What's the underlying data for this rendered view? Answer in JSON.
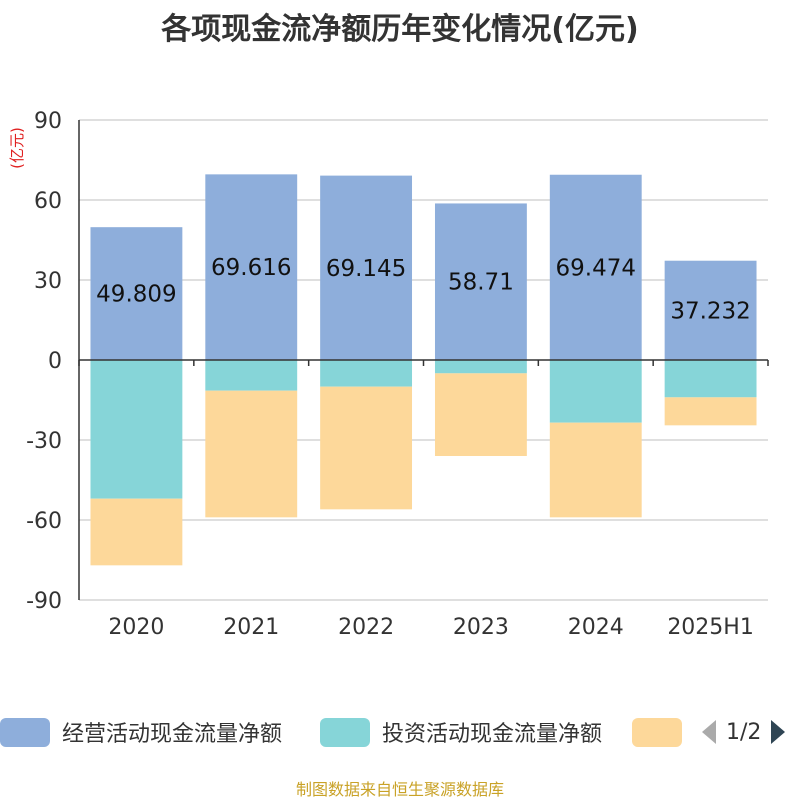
{
  "chart_data": {
    "type": "bar",
    "stacked": true,
    "title": "各项现金流净额历年变化情况(亿元)",
    "ylabel": "(亿元)",
    "categories": [
      "2020",
      "2021",
      "2022",
      "2023",
      "2024",
      "2025H1"
    ],
    "ylim": [
      -90,
      90
    ],
    "yticks": [
      "90",
      "60",
      "30",
      "0",
      "-30",
      "-60",
      "-90"
    ],
    "grid": true,
    "legend_position": "bottom",
    "series": [
      {
        "name": "经营活动现金流量净额",
        "color": "#8eaedb",
        "values": [
          49.809,
          69.616,
          69.145,
          58.71,
          69.474,
          37.232
        ],
        "labels": [
          "49.809",
          "69.616",
          "69.145",
          "58.71",
          "69.474",
          "37.232"
        ]
      },
      {
        "name": "投资活动现金流量净额",
        "color": "#86d5d8",
        "values": [
          -52.0,
          -11.5,
          -10.0,
          -5.0,
          -23.5,
          -14.0
        ]
      },
      {
        "name": "",
        "color": "#fdd89a",
        "values": [
          -25.0,
          -47.5,
          -46.0,
          -31.0,
          -35.5,
          -10.5
        ]
      }
    ]
  },
  "legend": {
    "items": [
      "经营活动现金流量净额",
      "投资活动现金流量净额",
      ""
    ],
    "page": "1/2"
  },
  "footer": "制图数据来自恒生聚源数据库"
}
